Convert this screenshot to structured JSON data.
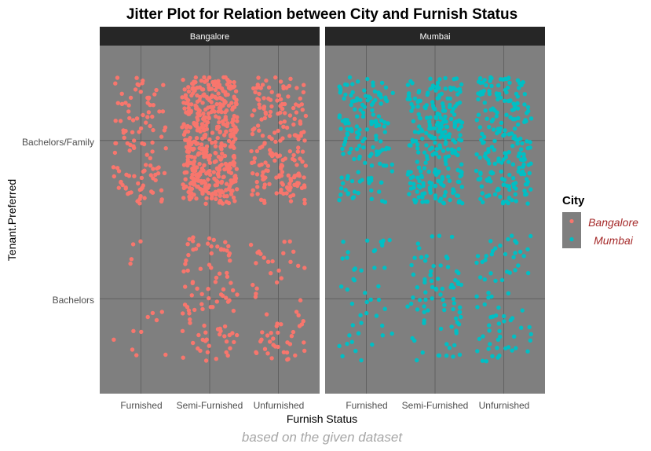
{
  "chart_data": {
    "type": "scatter",
    "subtype": "jitter",
    "title": "Jitter Plot for Relation between City and  Furnish Status",
    "xlabel": "Furnish Status",
    "ylabel": "Tenant.Preferred",
    "caption": "based on the given dataset",
    "x_categories": [
      "Furnished",
      "Semi-Furnished",
      "Unfurnished"
    ],
    "y_categories": [
      "Bachelors",
      "Bachelors/Family"
    ],
    "facets": [
      "Bangalore",
      "Mumbai"
    ],
    "legend": {
      "title": "City",
      "position": "right",
      "entries": [
        {
          "name": "Bangalore",
          "color": "#f8766d"
        },
        {
          "name": "Mumbai",
          "color": "#00bfc4"
        }
      ]
    },
    "panel_background": "#7f7f7f",
    "strip_background": "#262626",
    "grid": true,
    "jitter": {
      "width": 0.4,
      "height": 0.4
    },
    "series": [
      {
        "name": "Bangalore",
        "color": "#f8766d",
        "counts": {
          "Furnished": {
            "Bachelors/Family": 110,
            "Bachelors": 14
          },
          "Semi-Furnished": {
            "Bachelors/Family": 450,
            "Bachelors": 95
          },
          "Unfurnished": {
            "Bachelors/Family": 190,
            "Bachelors": 60
          }
        }
      },
      {
        "name": "Mumbai",
        "color": "#00bfc4",
        "counts": {
          "Furnished": {
            "Bachelors/Family": 150,
            "Bachelors": 45
          },
          "Semi-Furnished": {
            "Bachelors/Family": 260,
            "Bachelors": 80
          },
          "Unfurnished": {
            "Bachelors/Family": 210,
            "Bachelors": 75
          }
        }
      }
    ]
  }
}
